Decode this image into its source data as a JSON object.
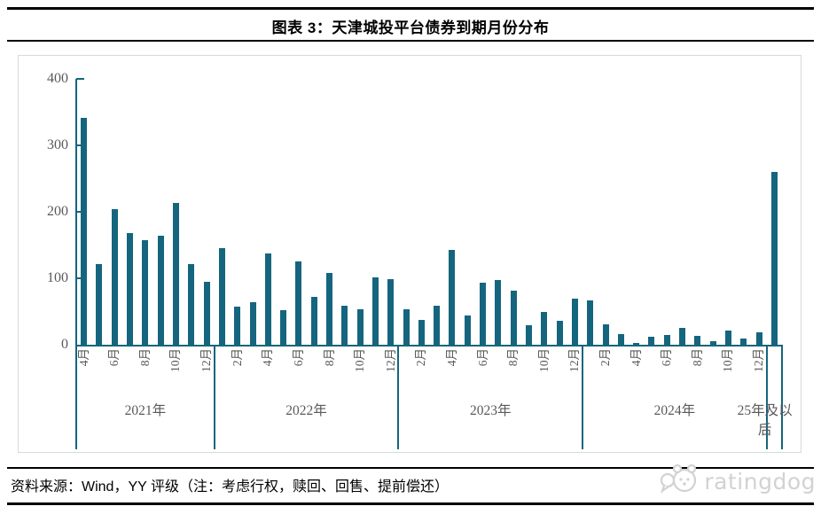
{
  "header": {
    "title": "图表 3：天津城投平台债券到期月份分布"
  },
  "footer": {
    "source": "资料来源：Wind，YY 评级（注：考虑行权，赎回、回售、提前偿还）",
    "logo_text": "ratingdog"
  },
  "chart_data": {
    "type": "bar",
    "title": "天津城投平台债券到期月份分布",
    "xlabel": "",
    "ylabel": "",
    "ylim": [
      0,
      400
    ],
    "yticks": [
      0,
      100,
      200,
      300,
      400
    ],
    "grid": false,
    "legend": "none",
    "colors": {
      "bar": "#15657E",
      "axis": "#15657E",
      "tick_text": "#595959",
      "frame": "#d9d9d9",
      "logo": "#d2d2d2"
    },
    "groups": [
      {
        "year": "2021年",
        "categories": [
          "4月",
          "5月",
          "6月",
          "7月",
          "8月",
          "9月",
          "10月",
          "11月",
          "12月"
        ],
        "values": [
          342,
          121,
          204,
          168,
          158,
          164,
          214,
          122,
          95
        ],
        "labeled": [
          "4月",
          "6月",
          "8月",
          "10月",
          "12月"
        ]
      },
      {
        "year": "2022年",
        "categories": [
          "1月",
          "2月",
          "3月",
          "4月",
          "5月",
          "6月",
          "7月",
          "8月",
          "9月",
          "10月",
          "11月",
          "12月"
        ],
        "values": [
          145,
          57,
          64,
          138,
          52,
          125,
          72,
          108,
          59,
          53,
          101,
          99
        ],
        "labeled": [
          "2月",
          "4月",
          "6月",
          "8月",
          "10月",
          "12月"
        ]
      },
      {
        "year": "2023年",
        "categories": [
          "1月",
          "2月",
          "3月",
          "4月",
          "5月",
          "6月",
          "7月",
          "8月",
          "9月",
          "10月",
          "11月",
          "12月"
        ],
        "values": [
          53,
          38,
          59,
          143,
          44,
          93,
          98,
          82,
          30,
          50,
          36,
          70
        ],
        "labeled": [
          "2月",
          "4月",
          "6月",
          "8月",
          "10月",
          "12月"
        ]
      },
      {
        "year": "2024年",
        "categories": [
          "1月",
          "2月",
          "3月",
          "4月",
          "5月",
          "6月",
          "7月",
          "8月",
          "9月",
          "10月",
          "11月",
          "12月"
        ],
        "values": [
          67,
          31,
          16,
          3,
          12,
          15,
          25,
          14,
          5,
          21,
          9,
          19
        ],
        "labeled": [
          "2月",
          "4月",
          "6月",
          "8月",
          "10月",
          "12月"
        ]
      },
      {
        "year": "25年及以后",
        "year_display": [
          "25年及以",
          "后"
        ],
        "categories": [
          "25年及以后"
        ],
        "values": [
          260
        ],
        "labeled": []
      }
    ]
  }
}
